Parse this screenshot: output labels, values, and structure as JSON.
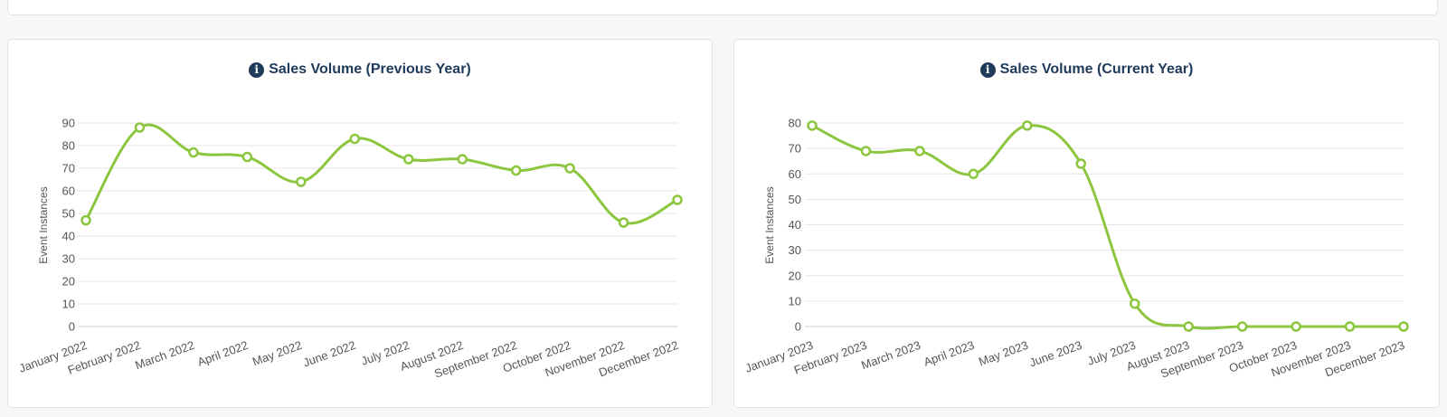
{
  "colors": {
    "line": "#8cc63f",
    "grid": "#e6e6e6",
    "title": "#1f3a5a",
    "text": "#555555"
  },
  "icons": {
    "title_icon": "info-circle-icon"
  },
  "chart_data": [
    {
      "type": "line",
      "title": "Sales Volume (Previous Year)",
      "ylabel": "Event Instances",
      "xlabel": "",
      "ylim": [
        0,
        90
      ],
      "yticks": [
        0,
        10,
        20,
        30,
        40,
        50,
        60,
        70,
        80,
        90
      ],
      "categories": [
        "January 2022",
        "February 2022",
        "March 2022",
        "April 2022",
        "May 2022",
        "June 2022",
        "July 2022",
        "August 2022",
        "September 2022",
        "October 2022",
        "November 2022",
        "December 2022"
      ],
      "series": [
        {
          "values": [
            47,
            88,
            77,
            75,
            64,
            83,
            74,
            74,
            69,
            70,
            46,
            56
          ]
        }
      ],
      "grid": true,
      "legend": "none"
    },
    {
      "type": "line",
      "title": "Sales Volume (Current Year)",
      "ylabel": "Event Instances",
      "xlabel": "",
      "ylim": [
        0,
        80
      ],
      "yticks": [
        0,
        10,
        20,
        30,
        40,
        50,
        60,
        70,
        80
      ],
      "categories": [
        "January 2023",
        "February 2023",
        "March 2023",
        "April 2023",
        "May 2023",
        "June 2023",
        "July 2023",
        "August 2023",
        "September 2023",
        "October 2023",
        "November 2023",
        "December 2023"
      ],
      "series": [
        {
          "values": [
            79,
            69,
            69,
            60,
            79,
            64,
            9,
            0,
            0,
            0,
            0,
            0
          ]
        }
      ],
      "grid": true,
      "legend": "none"
    }
  ]
}
